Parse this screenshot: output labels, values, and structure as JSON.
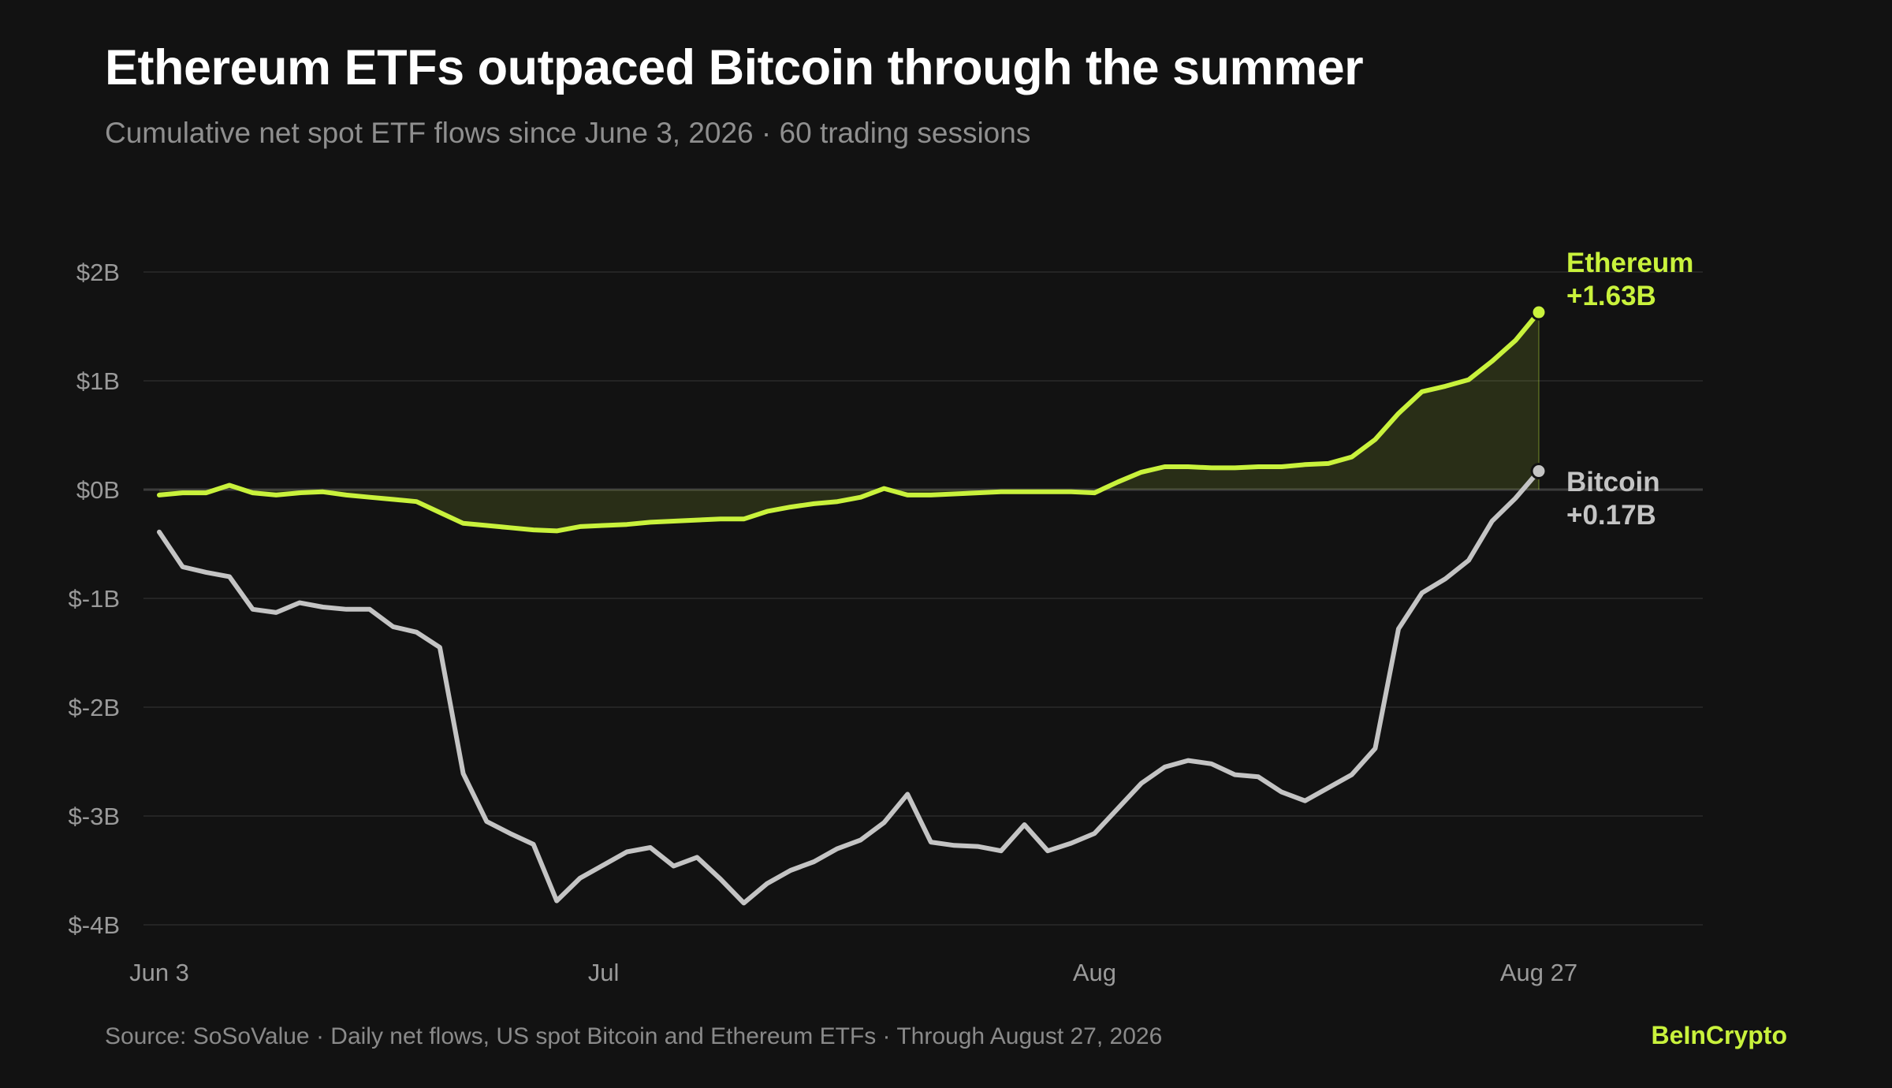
{
  "header": {
    "title": "Ethereum ETFs outpaced Bitcoin through the summer",
    "subtitle": "Cumulative net spot ETF flows since June 3, 2026 · 60 trading sessions"
  },
  "footer": {
    "source": "Source: SoSoValue · Daily net flows, US spot Bitcoin and Ethereum ETFs · Through August 27, 2026",
    "brand": "BeInCrypto"
  },
  "colors": {
    "background": "#121212",
    "ethereum": "#c9f23c",
    "bitcoin": "#c4c4c4",
    "grid": "#2a2a2a",
    "zero_line": "#3c3c3c",
    "tick_label": "#9a9a9a"
  },
  "chart_data": {
    "type": "line",
    "x_axis": {
      "type": "trading-session",
      "range": [
        1,
        60
      ],
      "ticks": [
        {
          "session": 1,
          "label": "Jun 3"
        },
        {
          "session": 20,
          "label": "Jul"
        },
        {
          "session": 41,
          "label": "Aug"
        },
        {
          "session": 60,
          "label": "Aug 27"
        }
      ]
    },
    "y_axis": {
      "unit": "USD billions",
      "ylim": [
        -4,
        2
      ],
      "ticks": [
        2,
        1,
        0,
        -1,
        -2,
        -3,
        -4
      ],
      "tick_labels": [
        "$2B",
        "$1B",
        "$0B",
        "$-1B",
        "$-2B",
        "$-3B",
        "$-4B"
      ]
    },
    "grid": true,
    "series": [
      {
        "name": "Ethereum",
        "end_label": "+1.63B",
        "fill_to_zero": true,
        "values": [
          -0.05,
          -0.03,
          -0.03,
          0.04,
          -0.03,
          -0.05,
          -0.03,
          -0.02,
          -0.05,
          -0.07,
          -0.09,
          -0.11,
          -0.21,
          -0.31,
          -0.33,
          -0.35,
          -0.37,
          -0.38,
          -0.34,
          -0.33,
          -0.32,
          -0.3,
          -0.29,
          -0.28,
          -0.27,
          -0.27,
          -0.2,
          -0.16,
          -0.13,
          -0.11,
          -0.07,
          0.01,
          -0.05,
          -0.05,
          -0.04,
          -0.03,
          -0.02,
          -0.02,
          -0.02,
          -0.02,
          -0.03,
          0.07,
          0.16,
          0.21,
          0.21,
          0.2,
          0.2,
          0.21,
          0.21,
          0.23,
          0.24,
          0.3,
          0.46,
          0.7,
          0.9,
          0.95,
          1.01,
          1.18,
          1.37,
          1.63
        ]
      },
      {
        "name": "Bitcoin",
        "end_label": "+0.17B",
        "fill_to_zero": false,
        "values": [
          -0.39,
          -0.71,
          -0.76,
          -0.8,
          -1.1,
          -1.13,
          -1.04,
          -1.08,
          -1.1,
          -1.1,
          -1.26,
          -1.31,
          -1.45,
          -2.61,
          -3.05,
          -3.16,
          -3.26,
          -3.78,
          -3.57,
          -3.45,
          -3.33,
          -3.29,
          -3.46,
          -3.38,
          -3.58,
          -3.8,
          -3.62,
          -3.5,
          -3.42,
          -3.3,
          -3.22,
          -3.06,
          -2.8,
          -3.24,
          -3.27,
          -3.28,
          -3.32,
          -3.08,
          -3.32,
          -3.25,
          -3.16,
          -2.93,
          -2.7,
          -2.55,
          -2.49,
          -2.52,
          -2.62,
          -2.64,
          -2.78,
          -2.86,
          -2.74,
          -2.62,
          -2.38,
          -1.28,
          -0.95,
          -0.82,
          -0.65,
          -0.29,
          -0.08,
          0.17
        ]
      }
    ]
  }
}
